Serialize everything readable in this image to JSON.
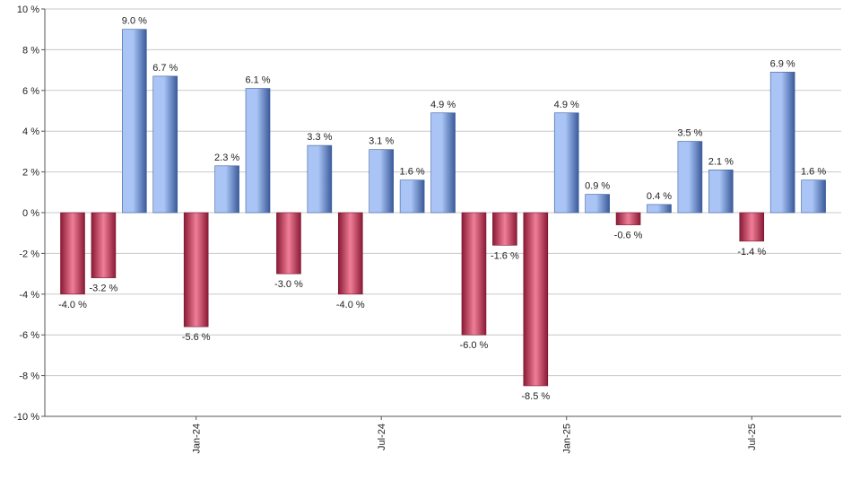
{
  "chart_data": {
    "type": "bar",
    "title": "",
    "xlabel": "",
    "ylabel": "",
    "ylim": [
      -10,
      10
    ],
    "y_ticks": [
      -10,
      -8,
      -6,
      -4,
      -2,
      0,
      2,
      4,
      6,
      8,
      10
    ],
    "y_tick_suffix": " %",
    "grid": true,
    "values": [
      -4.0,
      -3.2,
      9.0,
      6.7,
      -5.6,
      2.3,
      6.1,
      -3.0,
      3.3,
      -4.0,
      3.1,
      1.6,
      4.9,
      -6.0,
      -1.6,
      -8.5,
      4.9,
      0.9,
      -0.6,
      0.4,
      3.5,
      2.1,
      -1.4,
      6.9,
      1.6
    ],
    "value_labels": [
      "-4.0 %",
      "-3.2 %",
      "9.0 %",
      "6.7 %",
      "-5.6 %",
      "2.3 %",
      "6.1 %",
      "-3.0 %",
      "3.3 %",
      "-4.0 %",
      "3.1 %",
      "1.6 %",
      "4.9 %",
      "-6.0 %",
      "-1.6 %",
      "-8.5 %",
      "4.9 %",
      "0.9 %",
      "-0.6 %",
      "0.4 %",
      "3.5 %",
      "2.1 %",
      "-1.4 %",
      "6.9 %",
      "1.6 %"
    ],
    "x_tick_labels": [
      {
        "bar_index": 4,
        "label": "Jan-24"
      },
      {
        "bar_index": 10,
        "label": "Jul-24"
      },
      {
        "bar_index": 16,
        "label": "Jan-25"
      },
      {
        "bar_index": 22,
        "label": "Jul-25"
      }
    ],
    "colors": {
      "positive_dark": "#3a5a9a",
      "positive_light": "#a9c4f5",
      "negative_dark": "#8a1a35",
      "negative_light": "#f07e98",
      "grid": "#c8c8c8",
      "axis": "#555555"
    }
  }
}
